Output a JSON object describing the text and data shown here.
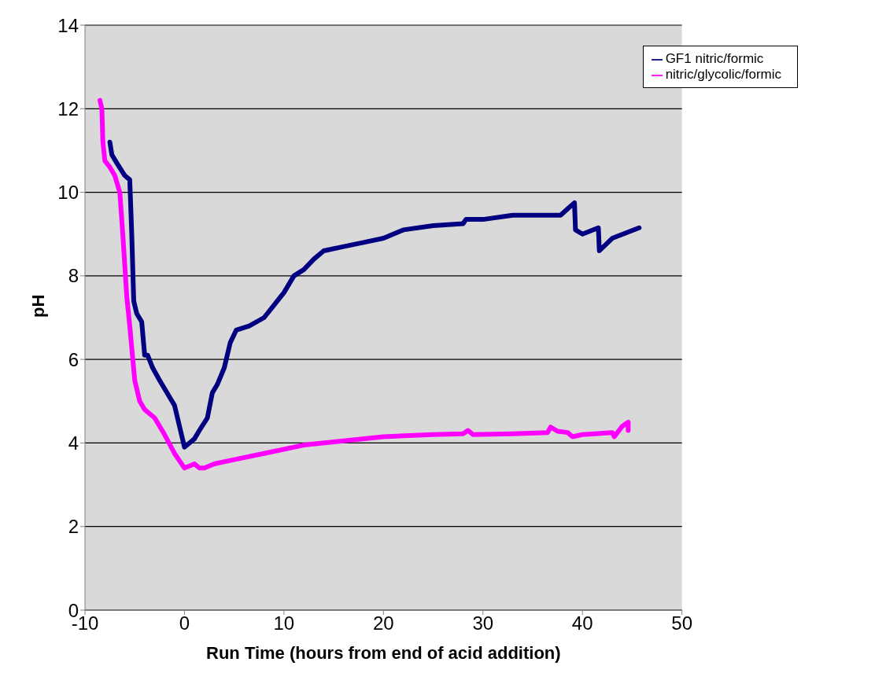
{
  "chart_data": {
    "type": "line",
    "xlabel": "Run Time (hours from end of acid addition)",
    "ylabel": "pH",
    "xlim": [
      -10,
      50
    ],
    "xticks": [
      -10,
      0,
      10,
      20,
      30,
      40,
      50
    ],
    "ylim": [
      0,
      14
    ],
    "yticks": [
      0,
      2,
      4,
      6,
      8,
      10,
      12,
      14
    ],
    "grid": "y",
    "legend": "top right",
    "marker": "none",
    "line_style": "solid",
    "series": [
      {
        "name": "GF1 nitric/formic",
        "color": "#000080",
        "x": [
          -7.5,
          -7.3,
          -6.8,
          -6,
          -5.5,
          -5.3,
          -5.1,
          -4.8,
          -4.3,
          -4,
          -3.7,
          -3.2,
          -2.5,
          -1.5,
          -1,
          0,
          0.5,
          1,
          1.5,
          2.3,
          2.8,
          3.3,
          4,
          4.6,
          5.2,
          6.5,
          8,
          9,
          10,
          11,
          12,
          13,
          14,
          16,
          18,
          20,
          22,
          25,
          28,
          28.3,
          30,
          33,
          36,
          37.8,
          38.5,
          39.2,
          39.3,
          40,
          41.6,
          41.7,
          43,
          45.7
        ],
        "values": [
          11.2,
          10.9,
          10.7,
          10.4,
          10.3,
          9,
          7.4,
          7.1,
          6.9,
          6.1,
          6.1,
          5.8,
          5.5,
          5.1,
          4.9,
          3.9,
          4,
          4.1,
          4.3,
          4.6,
          5.2,
          5.4,
          5.8,
          6.4,
          6.7,
          6.8,
          7,
          7.3,
          7.6,
          8,
          8.15,
          8.4,
          8.6,
          8.7,
          8.8,
          8.9,
          9.1,
          9.2,
          9.25,
          9.35,
          9.35,
          9.45,
          9.45,
          9.45,
          9.6,
          9.75,
          9.1,
          9.0,
          9.15,
          8.6,
          8.9,
          9.15
        ]
      },
      {
        "name": "nitric/glycolic/formic",
        "color": "#ff00ff",
        "x": [
          -8.5,
          -8.3,
          -8.2,
          -8,
          -7.5,
          -7,
          -6.5,
          -6.2,
          -5.8,
          -5.5,
          -5,
          -4.5,
          -4,
          -3.5,
          -3,
          -2,
          -1,
          0,
          0.5,
          1,
          1.5,
          2,
          3,
          5,
          8,
          12,
          16,
          20,
          25,
          28,
          28.5,
          29,
          33,
          36.5,
          36.8,
          37.5,
          38.5,
          39,
          40,
          43,
          43.2,
          44,
          44.6,
          44.6
        ],
        "values": [
          12.2,
          12,
          11.2,
          10.75,
          10.6,
          10.4,
          10,
          9,
          7.5,
          6.8,
          5.5,
          5,
          4.8,
          4.7,
          4.6,
          4.2,
          3.75,
          3.4,
          3.45,
          3.5,
          3.4,
          3.4,
          3.5,
          3.6,
          3.75,
          3.95,
          4.05,
          4.15,
          4.2,
          4.22,
          4.3,
          4.2,
          4.22,
          4.25,
          4.38,
          4.28,
          4.25,
          4.15,
          4.2,
          4.25,
          4.15,
          4.4,
          4.5,
          4.3
        ]
      }
    ]
  }
}
